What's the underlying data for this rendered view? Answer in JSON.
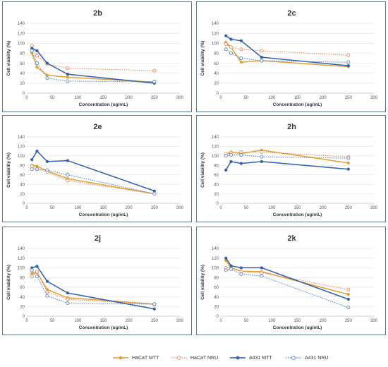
{
  "colors": {
    "HaCaT MTT": "#e4a030",
    "HaCaT NRU": "#f08a5d",
    "A431 MTT": "#2f5fae",
    "A431 NRU": "#5b8ad0",
    "panel_border": "#5a7797"
  },
  "legend": [
    {
      "name": "HaCaT MTT",
      "style": "solid-circle"
    },
    {
      "name": "HaCaT NRU",
      "style": "dotted-open-circle"
    },
    {
      "name": "A431 MTT",
      "style": "solid-circle"
    },
    {
      "name": "A431 NRU",
      "style": "dotted-open-circle"
    }
  ],
  "chart_data": [
    {
      "type": "line",
      "title": "2b",
      "xlabel": "Concentration (ug/mL)",
      "ylabel": "Cell viability (%)",
      "xlim": [
        0,
        300
      ],
      "ylim": [
        0,
        140
      ],
      "xticks": [
        "0",
        "50",
        "100",
        "150",
        "200",
        "250",
        "300"
      ],
      "yticks": [
        "0",
        "20",
        "40",
        "60",
        "80",
        "100",
        "120",
        "140"
      ],
      "grid": true,
      "x": [
        10,
        20,
        40,
        80,
        250
      ],
      "series": [
        {
          "name": "HaCaT MTT",
          "values": [
            80,
            52,
            36,
            32,
            22
          ]
        },
        {
          "name": "HaCaT NRU",
          "values": [
            95,
            75,
            58,
            50,
            45
          ]
        },
        {
          "name": "A431 MTT",
          "values": [
            90,
            85,
            60,
            38,
            20
          ]
        },
        {
          "name": "A431 NRU",
          "values": [
            85,
            60,
            30,
            24,
            23
          ]
        }
      ]
    },
    {
      "type": "line",
      "title": "2c",
      "xlabel": "Concentration (ug/mL)",
      "ylabel": "Cell viability (%)",
      "xlim": [
        0,
        300
      ],
      "ylim": [
        0,
        140
      ],
      "xticks": [
        "0",
        "50",
        "100",
        "150",
        "200",
        "250",
        "300"
      ],
      "yticks": [
        "0",
        "20",
        "40",
        "60",
        "80",
        "100",
        "120",
        "140"
      ],
      "grid": true,
      "x": [
        10,
        20,
        40,
        80,
        250
      ],
      "series": [
        {
          "name": "HaCaT MTT",
          "values": [
            102,
            92,
            62,
            65,
            53
          ]
        },
        {
          "name": "HaCaT NRU",
          "values": [
            98,
            92,
            88,
            85,
            76
          ]
        },
        {
          "name": "A431 MTT",
          "values": [
            115,
            108,
            105,
            72,
            55
          ]
        },
        {
          "name": "A431 NRU",
          "values": [
            88,
            80,
            70,
            65,
            62
          ]
        }
      ]
    },
    {
      "type": "line",
      "title": "2e",
      "xlabel": "Concentration (ug/mL)",
      "ylabel": "Cell viability (%)",
      "xlim": [
        0,
        300
      ],
      "ylim": [
        0,
        140
      ],
      "xticks": [
        "0",
        "50",
        "100",
        "150",
        "200",
        "250",
        "300"
      ],
      "yticks": [
        "0",
        "20",
        "40",
        "60",
        "80",
        "100",
        "120",
        "140"
      ],
      "grid": true,
      "x": [
        10,
        20,
        40,
        80,
        250
      ],
      "series": [
        {
          "name": "HaCaT MTT",
          "values": [
            80,
            78,
            68,
            52,
            20
          ]
        },
        {
          "name": "HaCaT NRU",
          "values": [
            78,
            72,
            66,
            48,
            20
          ]
        },
        {
          "name": "A431 MTT",
          "values": [
            92,
            110,
            88,
            90,
            26
          ]
        },
        {
          "name": "A431 NRU",
          "values": [
            72,
            72,
            70,
            60,
            20
          ]
        }
      ]
    },
    {
      "type": "line",
      "title": "2h",
      "xlabel": "Concentration (ug/mL)",
      "ylabel": "Cell viability (%)",
      "xlim": [
        0,
        300
      ],
      "ylim": [
        0,
        140
      ],
      "xticks": [
        "0",
        "50",
        "100",
        "150",
        "200",
        "250",
        "300"
      ],
      "yticks": [
        "0",
        "20",
        "40",
        "60",
        "80",
        "100",
        "120",
        "140"
      ],
      "grid": true,
      "x": [
        10,
        20,
        40,
        80,
        250
      ],
      "series": [
        {
          "name": "HaCaT MTT",
          "values": [
            104,
            108,
            105,
            112,
            85
          ]
        },
        {
          "name": "HaCaT NRU",
          "values": [
            104,
            106,
            108,
            108,
            98
          ]
        },
        {
          "name": "A431 MTT",
          "values": [
            70,
            88,
            84,
            88,
            72
          ]
        },
        {
          "name": "A431 NRU",
          "values": [
            100,
            102,
            102,
            98,
            95
          ]
        }
      ]
    },
    {
      "type": "line",
      "title": "2j",
      "xlabel": "Concentration (ug/mL)",
      "ylabel": "Cell viability (%)",
      "xlim": [
        0,
        300
      ],
      "ylim": [
        0,
        140
      ],
      "xticks": [
        "0",
        "50",
        "100",
        "150",
        "200",
        "250",
        "300"
      ],
      "yticks": [
        "0",
        "20",
        "40",
        "60",
        "80",
        "100",
        "120",
        "140"
      ],
      "grid": true,
      "x": [
        10,
        20,
        40,
        80,
        250
      ],
      "series": [
        {
          "name": "HaCaT MTT",
          "values": [
            88,
            90,
            55,
            38,
            25
          ]
        },
        {
          "name": "HaCaT NRU",
          "values": [
            82,
            92,
            50,
            35,
            24
          ]
        },
        {
          "name": "A431 MTT",
          "values": [
            100,
            103,
            72,
            48,
            15
          ]
        },
        {
          "name": "A431 NRU",
          "values": [
            95,
            82,
            42,
            27,
            25
          ]
        }
      ]
    },
    {
      "type": "line",
      "title": "2k",
      "xlabel": "Concentration (ug/mL)",
      "ylabel": "Cell viability (%)",
      "xlim": [
        0,
        300
      ],
      "ylim": [
        0,
        140
      ],
      "xticks": [
        "0",
        "50",
        "100",
        "150",
        "200",
        "250",
        "300"
      ],
      "yticks": [
        "0",
        "20",
        "40",
        "60",
        "80",
        "100",
        "120",
        "140"
      ],
      "grid": true,
      "x": [
        10,
        20,
        40,
        80,
        250
      ],
      "series": [
        {
          "name": "HaCaT MTT",
          "values": [
            115,
            100,
            93,
            92,
            45
          ]
        },
        {
          "name": "HaCaT NRU",
          "values": [
            100,
            100,
            92,
            90,
            55
          ]
        },
        {
          "name": "A431 MTT",
          "values": [
            120,
            104,
            100,
            100,
            35
          ]
        },
        {
          "name": "A431 NRU",
          "values": [
            95,
            97,
            87,
            83,
            18
          ]
        }
      ]
    }
  ]
}
